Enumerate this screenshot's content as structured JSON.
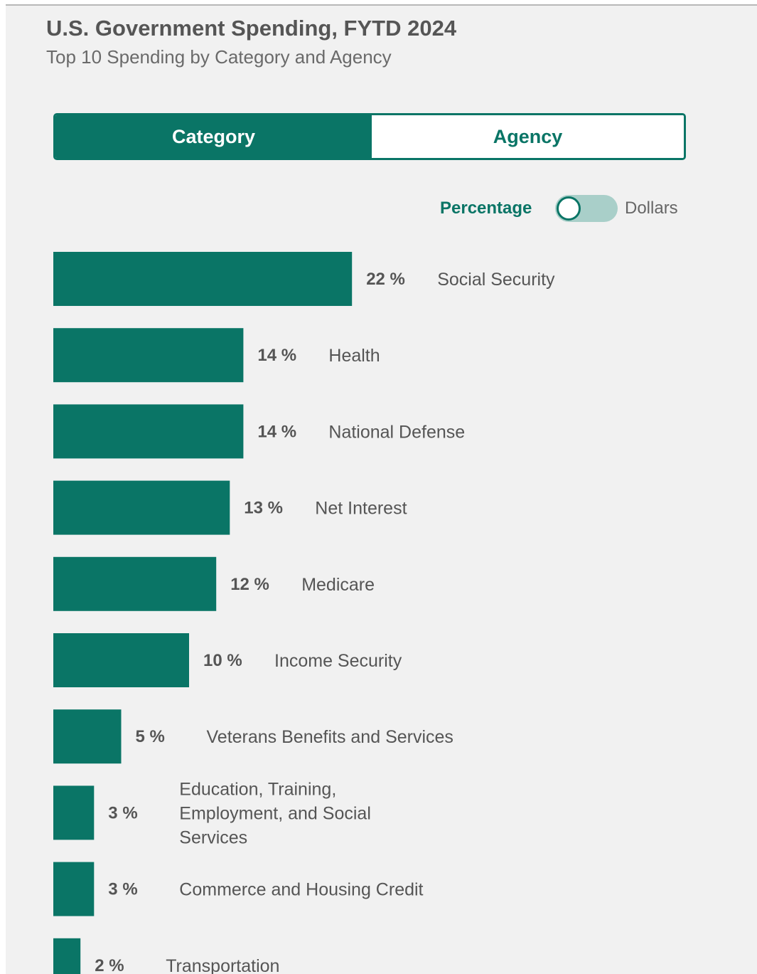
{
  "header": {
    "title": "U.S. Government Spending, FYTD 2024",
    "subtitle": "Top 10 Spending by Category and Agency"
  },
  "tabs": [
    {
      "label": "Category",
      "active": true
    },
    {
      "label": "Agency",
      "active": false
    }
  ],
  "toggle": {
    "left_label": "Percentage",
    "right_label": "Dollars",
    "selected": "Percentage"
  },
  "colors": {
    "accent": "#0a7566",
    "toggle_track": "#a9cfc9",
    "background": "#f1f1f1"
  },
  "chart_data": {
    "type": "bar",
    "orientation": "horizontal",
    "categories": [
      "Social Security",
      "Health",
      "National Defense",
      "Net Interest",
      "Medicare",
      "Income Security",
      "Veterans Benefits and Services",
      "Education, Training, Employment, and Social Services",
      "Commerce and Housing Credit",
      "Transportation"
    ],
    "category_lines": [
      [
        "Social Security"
      ],
      [
        "Health"
      ],
      [
        "National Defense"
      ],
      [
        "Net Interest"
      ],
      [
        "Medicare"
      ],
      [
        "Income Security"
      ],
      [
        "Veterans Benefits and Services"
      ],
      [
        "Education, Training,",
        "Employment, and Social",
        "Services"
      ],
      [
        "Commerce and Housing Credit"
      ],
      [
        "Transportation"
      ]
    ],
    "values": [
      22,
      14,
      14,
      13,
      12,
      10,
      5,
      3,
      3,
      2
    ],
    "value_labels": [
      "22 %",
      "14 %",
      "14 %",
      "13 %",
      "12 %",
      "10 %",
      "5 %",
      "3 %",
      "3 %",
      "2 %"
    ],
    "unit": "%",
    "grid": false,
    "legend": "none"
  }
}
